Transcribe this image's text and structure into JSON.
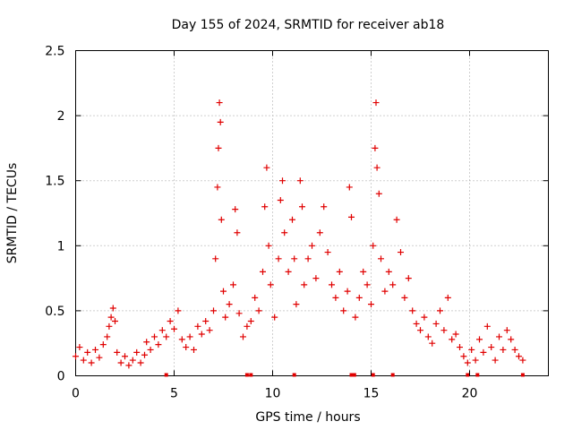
{
  "chart_data": {
    "type": "scatter",
    "title": "Day 155 of 2024, SRMTID for receiver ab18",
    "xlabel": "GPS time / hours",
    "ylabel": "SRMTID / TECUs",
    "xlim": [
      0,
      24
    ],
    "ylim": [
      0,
      2.5
    ],
    "grid": true,
    "marker": "+",
    "color": "#e00000",
    "xticks": [
      0,
      5,
      10,
      15,
      20
    ],
    "xtick_labels": [
      "0",
      "5",
      "10",
      "15",
      "20"
    ],
    "yticks": [
      0,
      0.5,
      1,
      1.5,
      2,
      2.5
    ],
    "ytick_labels": [
      "0",
      "0.5",
      "1",
      "1.5",
      "2",
      "2.5"
    ],
    "series": [
      {
        "name": "SRMTID",
        "points": [
          [
            0.0,
            0.15
          ],
          [
            0.2,
            0.22
          ],
          [
            0.4,
            0.12
          ],
          [
            0.6,
            0.18
          ],
          [
            0.8,
            0.1
          ],
          [
            1.0,
            0.2
          ],
          [
            1.2,
            0.14
          ],
          [
            1.4,
            0.24
          ],
          [
            1.6,
            0.3
          ],
          [
            1.7,
            0.38
          ],
          [
            1.8,
            0.45
          ],
          [
            1.9,
            0.52
          ],
          [
            2.0,
            0.42
          ],
          [
            2.1,
            0.18
          ],
          [
            2.3,
            0.1
          ],
          [
            2.5,
            0.15
          ],
          [
            2.7,
            0.08
          ],
          [
            2.9,
            0.12
          ],
          [
            3.1,
            0.18
          ],
          [
            3.3,
            0.1
          ],
          [
            3.5,
            0.16
          ],
          [
            3.6,
            0.26
          ],
          [
            3.8,
            0.2
          ],
          [
            4.0,
            0.3
          ],
          [
            4.2,
            0.24
          ],
          [
            4.4,
            0.35
          ],
          [
            4.6,
            0.3
          ],
          [
            4.8,
            0.42
          ],
          [
            5.0,
            0.36
          ],
          [
            5.2,
            0.5
          ],
          [
            5.4,
            0.28
          ],
          [
            5.6,
            0.22
          ],
          [
            5.8,
            0.3
          ],
          [
            6.0,
            0.2
          ],
          [
            6.2,
            0.38
          ],
          [
            6.4,
            0.32
          ],
          [
            6.6,
            0.42
          ],
          [
            6.8,
            0.35
          ],
          [
            7.0,
            0.5
          ],
          [
            7.1,
            0.9
          ],
          [
            7.2,
            1.45
          ],
          [
            7.25,
            1.75
          ],
          [
            7.3,
            2.1
          ],
          [
            7.35,
            1.95
          ],
          [
            7.4,
            1.2
          ],
          [
            7.5,
            0.65
          ],
          [
            7.6,
            0.45
          ],
          [
            7.8,
            0.55
          ],
          [
            8.0,
            0.7
          ],
          [
            8.1,
            1.28
          ],
          [
            8.2,
            1.1
          ],
          [
            8.3,
            0.48
          ],
          [
            8.5,
            0.3
          ],
          [
            8.7,
            0.38
          ],
          [
            8.9,
            0.42
          ],
          [
            9.1,
            0.6
          ],
          [
            9.3,
            0.5
          ],
          [
            9.5,
            0.8
          ],
          [
            9.6,
            1.3
          ],
          [
            9.7,
            1.6
          ],
          [
            9.8,
            1.0
          ],
          [
            9.9,
            0.7
          ],
          [
            10.1,
            0.45
          ],
          [
            10.3,
            0.9
          ],
          [
            10.4,
            1.35
          ],
          [
            10.5,
            1.5
          ],
          [
            10.6,
            1.1
          ],
          [
            10.8,
            0.8
          ],
          [
            11.0,
            1.2
          ],
          [
            11.1,
            0.9
          ],
          [
            11.2,
            0.55
          ],
          [
            11.4,
            1.5
          ],
          [
            11.5,
            1.3
          ],
          [
            11.6,
            0.7
          ],
          [
            11.8,
            0.9
          ],
          [
            12.0,
            1.0
          ],
          [
            12.2,
            0.75
          ],
          [
            12.4,
            1.1
          ],
          [
            12.6,
            1.3
          ],
          [
            12.8,
            0.95
          ],
          [
            13.0,
            0.7
          ],
          [
            13.2,
            0.6
          ],
          [
            13.4,
            0.8
          ],
          [
            13.6,
            0.5
          ],
          [
            13.8,
            0.65
          ],
          [
            13.9,
            1.45
          ],
          [
            14.0,
            1.22
          ],
          [
            14.2,
            0.45
          ],
          [
            14.4,
            0.6
          ],
          [
            14.6,
            0.8
          ],
          [
            14.8,
            0.7
          ],
          [
            15.0,
            0.55
          ],
          [
            15.1,
            1.0
          ],
          [
            15.2,
            1.75
          ],
          [
            15.25,
            2.1
          ],
          [
            15.3,
            1.6
          ],
          [
            15.4,
            1.4
          ],
          [
            15.5,
            0.9
          ],
          [
            15.7,
            0.65
          ],
          [
            15.9,
            0.8
          ],
          [
            16.1,
            0.7
          ],
          [
            16.3,
            1.2
          ],
          [
            16.5,
            0.95
          ],
          [
            16.7,
            0.6
          ],
          [
            16.9,
            0.75
          ],
          [
            17.1,
            0.5
          ],
          [
            17.3,
            0.4
          ],
          [
            17.5,
            0.35
          ],
          [
            17.7,
            0.45
          ],
          [
            17.9,
            0.3
          ],
          [
            18.1,
            0.25
          ],
          [
            18.3,
            0.4
          ],
          [
            18.5,
            0.5
          ],
          [
            18.7,
            0.35
          ],
          [
            18.9,
            0.6
          ],
          [
            19.1,
            0.28
          ],
          [
            19.3,
            0.32
          ],
          [
            19.5,
            0.22
          ],
          [
            19.7,
            0.15
          ],
          [
            19.9,
            0.1
          ],
          [
            20.1,
            0.2
          ],
          [
            20.3,
            0.12
          ],
          [
            20.5,
            0.28
          ],
          [
            20.7,
            0.18
          ],
          [
            20.9,
            0.38
          ],
          [
            21.1,
            0.22
          ],
          [
            21.3,
            0.12
          ],
          [
            21.5,
            0.3
          ],
          [
            21.7,
            0.2
          ],
          [
            21.9,
            0.35
          ],
          [
            22.1,
            0.28
          ],
          [
            22.3,
            0.2
          ],
          [
            22.5,
            0.15
          ],
          [
            22.7,
            0.12
          ]
        ]
      }
    ],
    "gap_markers_x": [
      4.6,
      8.7,
      8.9,
      11.1,
      14.0,
      14.15,
      15.1,
      16.1,
      19.9,
      20.4,
      22.7
    ]
  }
}
